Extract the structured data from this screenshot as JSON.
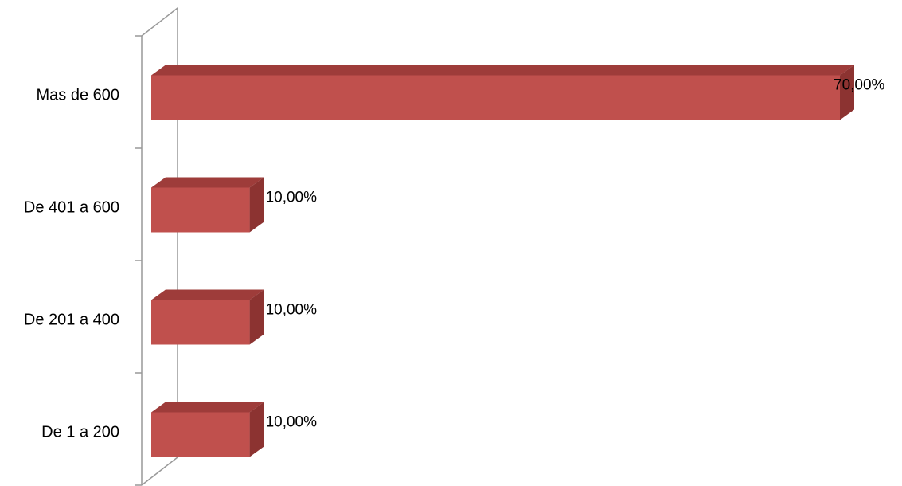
{
  "chart_data": {
    "type": "bar",
    "orientation": "horizontal",
    "style": "3d",
    "categories": [
      "De 1 a 200",
      "De 201 a 400",
      "De 401 a 600",
      "Mas de 600"
    ],
    "series": [
      {
        "values": [
          10,
          10,
          10,
          70
        ],
        "data_labels": [
          "10,00%",
          "10,00%",
          "10,00%",
          "70,00%"
        ],
        "color": "#c0504d"
      }
    ],
    "title": "",
    "xlabel": "",
    "ylabel": "",
    "xlim": [
      0,
      70
    ],
    "grid": false,
    "legend": "none"
  },
  "colors": {
    "bar_front": "#c0504d",
    "bar_top": "#9e3c3a",
    "bar_side": "#8c3331",
    "axis": "#999999"
  }
}
